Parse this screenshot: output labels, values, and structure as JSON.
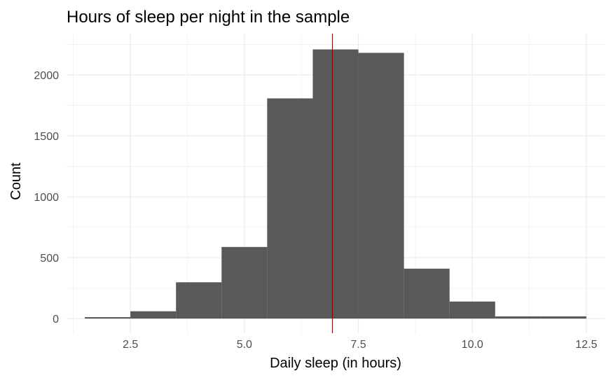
{
  "chart_data": {
    "type": "bar",
    "title": "Hours of sleep per night in the sample",
    "xlabel": "Daily sleep (in hours)",
    "ylabel": "Count",
    "bin_width": 1,
    "bins": [
      {
        "x": 2,
        "count": 12
      },
      {
        "x": 3,
        "count": 60
      },
      {
        "x": 4,
        "count": 298
      },
      {
        "x": 5,
        "count": 588
      },
      {
        "x": 6,
        "count": 1808
      },
      {
        "x": 7,
        "count": 2210
      },
      {
        "x": 8,
        "count": 2182
      },
      {
        "x": 9,
        "count": 410
      },
      {
        "x": 10,
        "count": 140
      },
      {
        "x": 11,
        "count": 18
      },
      {
        "x": 12,
        "count": 18
      }
    ],
    "mean_line": 6.93,
    "xlim": [
      1.1,
      12.9
    ],
    "ylim": [
      -120,
      2340
    ],
    "x_ticks": [
      2.5,
      5.0,
      7.5,
      10.0,
      12.5
    ],
    "x_tick_labels": [
      "2.5",
      "5.0",
      "7.5",
      "10.0",
      "12.5"
    ],
    "y_ticks": [
      0,
      500,
      1000,
      1500,
      2000
    ],
    "y_tick_labels": [
      "0",
      "500",
      "1000",
      "1500",
      "2000"
    ],
    "grid": true,
    "colors": {
      "bar": "#595959",
      "mean_line": "#8b0000",
      "grid": "#ebebeb"
    }
  }
}
